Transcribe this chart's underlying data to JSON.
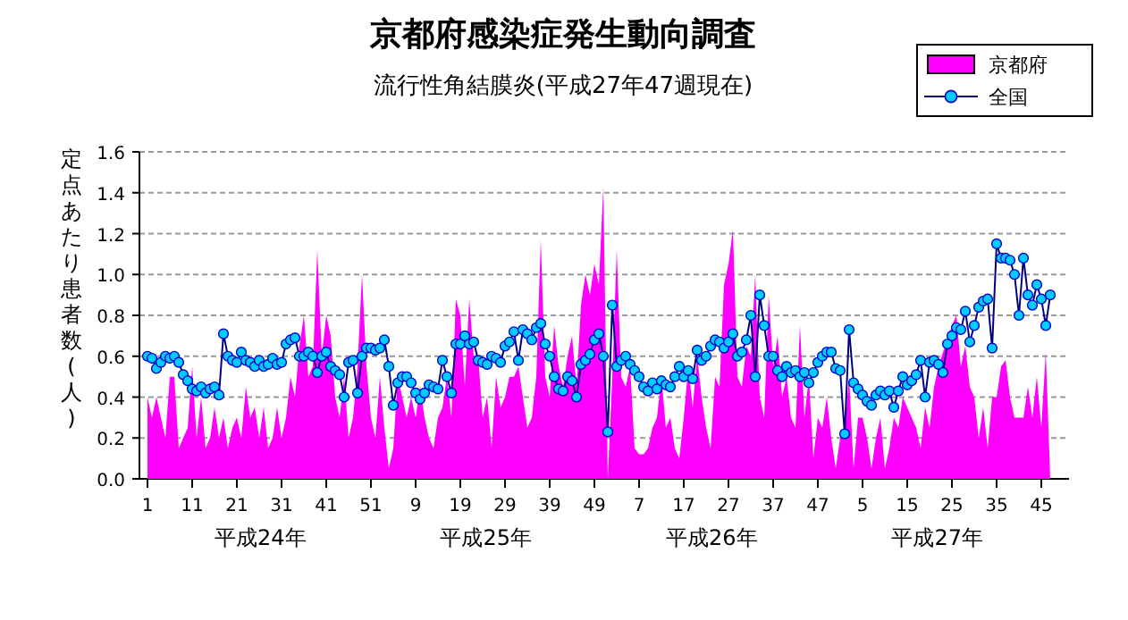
{
  "chart_data": {
    "type": "area",
    "title": "京都府感染症発生動向調査",
    "subtitle": "流行性角結膜炎(平成27年47週現在)",
    "ylabel": "定点あたり患者数(人)",
    "annotations": [
      "平成24年",
      "平成25年",
      "平成26年",
      "平成27年"
    ],
    "categories": [
      "1",
      null,
      null,
      null,
      null,
      null,
      null,
      null,
      null,
      null,
      "11",
      null,
      null,
      null,
      null,
      null,
      null,
      null,
      null,
      null,
      "21",
      null,
      null,
      null,
      null,
      null,
      null,
      null,
      null,
      null,
      "31",
      null,
      null,
      null,
      null,
      null,
      null,
      null,
      null,
      null,
      "41",
      null,
      null,
      null,
      null,
      null,
      null,
      null,
      null,
      null,
      "51",
      null,
      null,
      null,
      null,
      null,
      null,
      null,
      null,
      null,
      "9",
      null,
      null,
      null,
      null,
      null,
      null,
      null,
      null,
      null,
      "19",
      null,
      null,
      null,
      null,
      null,
      null,
      null,
      null,
      null,
      "29",
      null,
      null,
      null,
      null,
      null,
      null,
      null,
      null,
      null,
      "39",
      null,
      null,
      null,
      null,
      null,
      null,
      null,
      null,
      null,
      "49",
      null,
      null,
      null,
      null,
      null,
      null,
      null,
      null,
      null,
      "7",
      null,
      null,
      null,
      null,
      null,
      null,
      null,
      null,
      null,
      "17",
      null,
      null,
      null,
      null,
      null,
      null,
      null,
      null,
      null,
      "27",
      null,
      null,
      null,
      null,
      null,
      null,
      null,
      null,
      null,
      "37",
      null,
      null,
      null,
      null,
      null,
      null,
      null,
      null,
      null,
      "47",
      null,
      null,
      null,
      null,
      null,
      null,
      null,
      null,
      null,
      "5",
      null,
      null,
      null,
      null,
      null,
      null,
      null,
      null,
      null,
      "15",
      null,
      null,
      null,
      null,
      null,
      null,
      null,
      null,
      null,
      "25",
      null,
      null,
      null,
      null,
      null,
      null,
      null,
      null,
      null,
      "35",
      null,
      null,
      null,
      null,
      null,
      null,
      null,
      null,
      null,
      "45",
      null,
      null
    ],
    "series": [
      {
        "name": "京都府",
        "color": "#ff00ff",
        "values": [
          0.4,
          0.3,
          0.4,
          0.3,
          0.2,
          0.5,
          0.5,
          0.15,
          0.2,
          0.25,
          0.55,
          0.2,
          0.4,
          0.15,
          0.2,
          0.35,
          0.2,
          0.3,
          0.15,
          0.25,
          0.3,
          0.2,
          0.45,
          0.3,
          0.35,
          0.2,
          0.35,
          0.15,
          0.2,
          0.35,
          0.2,
          0.3,
          0.5,
          0.4,
          0.65,
          0.8,
          0.5,
          0.55,
          1.12,
          0.6,
          0.8,
          0.7,
          0.4,
          0.3,
          0.5,
          0.2,
          0.3,
          0.55,
          1.0,
          0.55,
          0.3,
          0.2,
          0.5,
          0.25,
          0.05,
          0.15,
          0.5,
          0.4,
          0.3,
          0.4,
          0.3,
          0.45,
          0.3,
          0.2,
          0.15,
          0.3,
          0.35,
          0.5,
          0.3,
          0.88,
          0.8,
          0.45,
          0.88,
          0.6,
          0.6,
          0.3,
          0.4,
          0.15,
          0.5,
          0.35,
          0.4,
          0.5,
          0.5,
          0.55,
          0.4,
          0.25,
          0.3,
          0.5,
          1.17,
          0.5,
          0.4,
          0.75,
          0.55,
          0.45,
          0.6,
          0.7,
          0.45,
          0.85,
          1.0,
          0.9,
          1.05,
          0.95,
          1.43,
          0.0,
          0.5,
          1.12,
          0.5,
          0.45,
          0.55,
          0.15,
          0.12,
          0.12,
          0.15,
          0.25,
          0.3,
          0.5,
          0.25,
          0.3,
          0.15,
          0.1,
          0.3,
          0.55,
          0.35,
          0.6,
          0.4,
          0.25,
          0.15,
          0.5,
          0.45,
          0.95,
          1.05,
          1.22,
          0.5,
          0.45,
          0.65,
          0.6,
          1.0,
          0.4,
          0.3,
          0.9,
          0.55,
          0.7,
          0.4,
          0.5,
          0.3,
          0.25,
          0.75,
          0.3,
          0.5,
          0.1,
          0.3,
          0.25,
          0.4,
          0.2,
          0.05,
          0.2,
          0.25,
          0.5,
          0.05,
          0.3,
          0.3,
          0.2,
          0.05,
          0.2,
          0.3,
          0.05,
          0.15,
          0.3,
          0.25,
          0.4,
          0.35,
          0.3,
          0.25,
          0.15,
          0.35,
          0.25,
          0.45,
          0.55,
          0.62,
          0.68,
          0.75,
          0.8,
          0.55,
          0.65,
          0.45,
          0.4,
          0.2,
          0.35,
          0.15,
          0.4,
          0.4,
          0.55,
          0.58,
          0.4,
          0.3,
          0.3,
          0.3,
          0.45,
          0.3,
          0.5,
          0.25,
          0.62,
          0.0
        ]
      },
      {
        "name": "全国",
        "type": "line",
        "marker": "circle",
        "color": "#00ccff",
        "values": [
          0.6,
          0.59,
          0.54,
          0.57,
          0.6,
          0.59,
          0.6,
          0.57,
          0.51,
          0.48,
          0.44,
          0.43,
          0.45,
          0.42,
          0.44,
          0.45,
          0.41,
          0.71,
          0.6,
          0.58,
          0.57,
          0.62,
          0.58,
          0.57,
          0.55,
          0.58,
          0.55,
          0.56,
          0.59,
          0.56,
          0.57,
          0.66,
          0.68,
          0.69,
          0.6,
          0.6,
          0.62,
          0.6,
          0.52,
          0.6,
          0.62,
          0.55,
          0.53,
          0.51,
          0.4,
          0.57,
          0.58,
          0.42,
          0.6,
          0.64,
          0.64,
          0.63,
          0.64,
          0.68,
          0.55,
          0.36,
          0.47,
          0.5,
          0.5,
          0.47,
          0.42,
          0.39,
          0.42,
          0.46,
          0.45,
          0.44,
          0.58,
          0.5,
          0.42,
          0.66,
          0.66,
          0.7,
          0.66,
          0.67,
          0.58,
          0.57,
          0.56,
          0.6,
          0.59,
          0.57,
          0.65,
          0.67,
          0.72,
          0.58,
          0.73,
          0.71,
          0.68,
          0.74,
          0.76,
          0.66,
          0.6,
          0.5,
          0.44,
          0.43,
          0.5,
          0.48,
          0.4,
          0.56,
          0.58,
          0.61,
          0.68,
          0.71,
          0.6,
          0.23,
          0.85,
          0.55,
          0.58,
          0.6,
          0.56,
          0.53,
          0.5,
          0.45,
          0.43,
          0.47,
          0.44,
          0.48,
          0.46,
          0.45,
          0.5,
          0.55,
          0.5,
          0.53,
          0.49,
          0.63,
          0.58,
          0.6,
          0.65,
          0.68,
          0.67,
          0.64,
          0.67,
          0.71,
          0.6,
          0.62,
          0.68,
          0.8,
          0.5,
          0.9,
          0.75,
          0.6,
          0.6,
          0.53,
          0.5,
          0.55,
          0.52,
          0.53,
          0.5,
          0.52,
          0.47,
          0.52,
          0.57,
          0.6,
          0.62,
          0.62,
          0.54,
          0.53,
          0.22,
          0.73,
          0.47,
          0.44,
          0.41,
          0.38,
          0.36,
          0.41,
          0.43,
          0.41,
          0.43,
          0.35,
          0.43,
          0.5,
          0.46,
          0.48,
          0.51,
          0.58,
          0.4,
          0.57,
          0.58,
          0.56,
          0.52,
          0.66,
          0.7,
          0.74,
          0.73,
          0.82,
          0.67,
          0.75,
          0.84,
          0.87,
          0.88,
          0.64,
          1.15,
          1.08,
          1.08,
          1.07,
          1.0,
          0.8,
          1.08,
          0.9,
          0.85,
          0.95,
          0.88,
          0.75,
          0.9
        ]
      }
    ],
    "ylim": [
      0,
      1.6
    ],
    "yticks": [
      {
        "value": 0,
        "label": "0.0"
      },
      {
        "value": 0.2,
        "label": "0.2"
      },
      {
        "value": 0.4,
        "label": "0.4"
      },
      {
        "value": 0.6,
        "label": "0.6"
      },
      {
        "value": 0.8,
        "label": "0.8"
      },
      {
        "value": 1.0,
        "label": "1.0"
      },
      {
        "value": 1.2,
        "label": "1.2"
      },
      {
        "value": 1.4,
        "label": "1.4"
      },
      {
        "value": 1.6,
        "label": "1.6"
      }
    ],
    "grid": "y",
    "legend": "top right",
    "line_style": "solid"
  }
}
